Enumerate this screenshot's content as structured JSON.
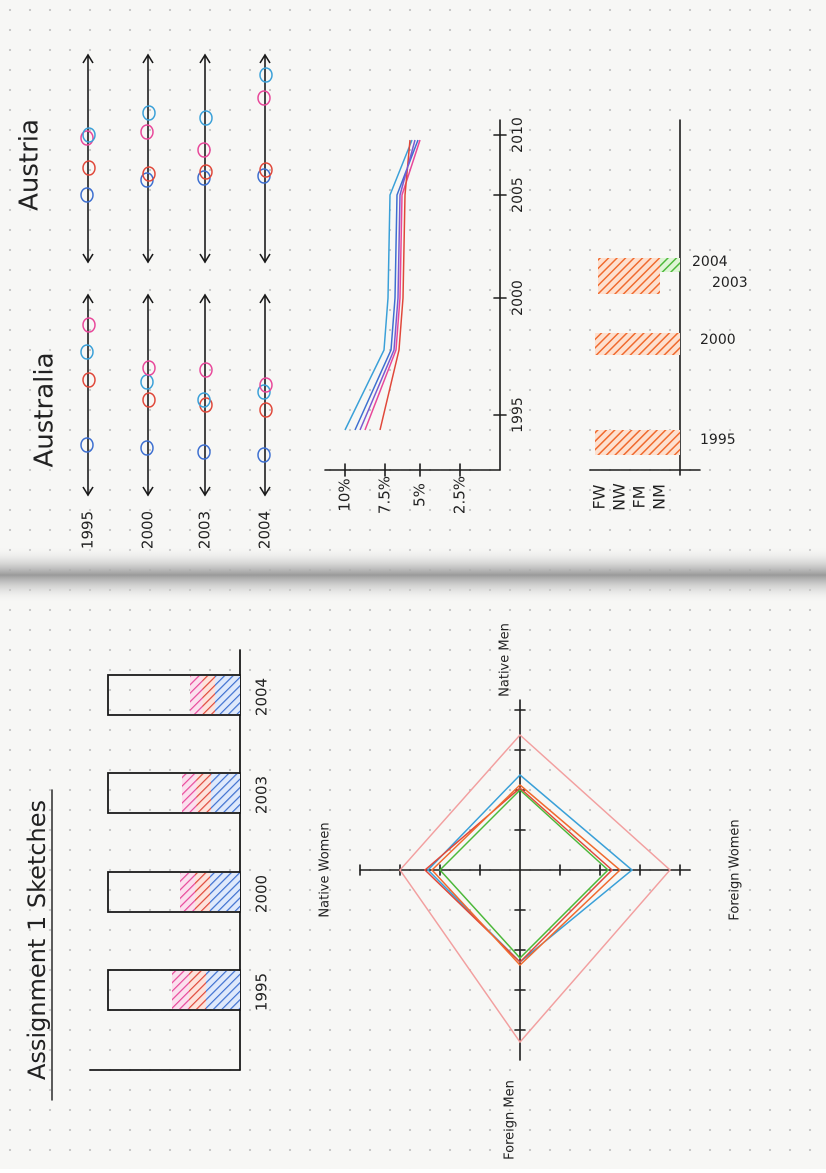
{
  "top_page": {
    "dot_plots": {
      "countries": [
        "Australia",
        "Austria"
      ],
      "years": [
        "1995",
        "2000",
        "2003",
        "2004"
      ]
    },
    "line_chart": {
      "y_ticks": [
        "10%",
        "7.5%",
        "5%",
        "2.5%"
      ],
      "x_ticks": [
        "1995",
        "2000",
        "2005",
        "2010"
      ]
    },
    "bar_chart": {
      "groups": [
        "FW",
        "NW",
        "FM",
        "NM"
      ],
      "years": [
        "1995",
        "2000",
        "2003",
        "2004"
      ]
    }
  },
  "bottom_page": {
    "title": "Assignment 1 Sketches",
    "stacked_bars": {
      "years": [
        "1995",
        "2000",
        "2003",
        "2004"
      ]
    },
    "radar": {
      "axes": [
        "Native Men",
        "Native Women",
        "Foreign Women",
        "Foreign Men"
      ]
    }
  }
}
